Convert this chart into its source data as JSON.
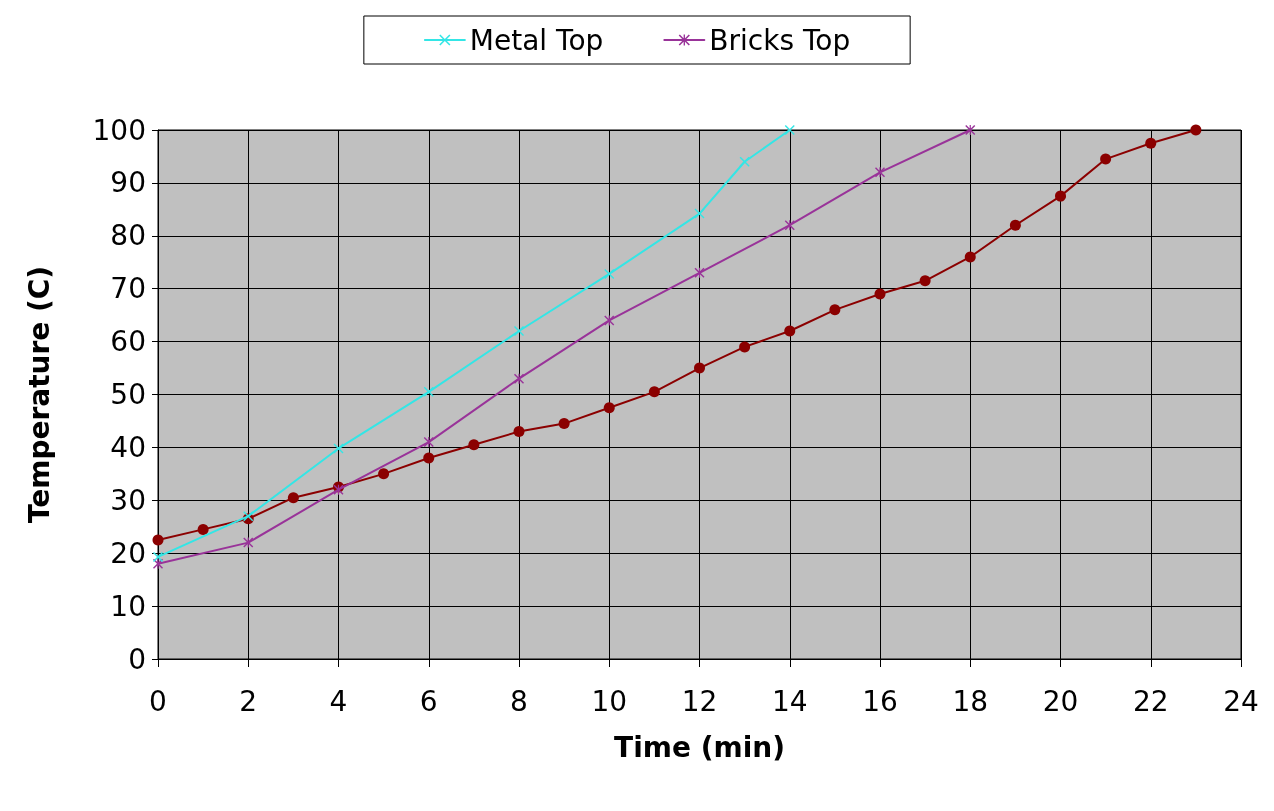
{
  "chart_data": {
    "type": "line",
    "xlabel": "Time (min)",
    "ylabel": "Temperature (C)",
    "xlim": [
      0,
      24
    ],
    "xticks": [
      0,
      2,
      4,
      6,
      8,
      10,
      12,
      14,
      16,
      18,
      20,
      22,
      24
    ],
    "ylim": [
      0,
      100
    ],
    "yticks": [
      0,
      10,
      20,
      30,
      40,
      50,
      60,
      70,
      80,
      90,
      100
    ],
    "grid": true,
    "legend": "top",
    "series": [
      {
        "name": "Metal Top",
        "color": "#33e6e6",
        "marker": "cross",
        "x": [
          0,
          2,
          4,
          6,
          8,
          10,
          12,
          13,
          14
        ],
        "values": [
          19.3,
          27,
          39.8,
          50.5,
          62,
          72.8,
          84.2,
          94,
          100
        ]
      },
      {
        "name": "Bricks Top",
        "color": "#993399",
        "marker": "star",
        "x": [
          0,
          2,
          4,
          6,
          8,
          10,
          12,
          14,
          16,
          18
        ],
        "values": [
          18,
          22,
          32,
          41,
          53,
          64,
          73,
          82,
          92,
          100
        ]
      },
      {
        "color": "#8b0000",
        "marker": "circle",
        "x": [
          0,
          1,
          2,
          3,
          4,
          5,
          6,
          7,
          8,
          9,
          10,
          11,
          12,
          13,
          14,
          15,
          16,
          17,
          18,
          19,
          20,
          21,
          22,
          23
        ],
        "values": [
          22.5,
          24.5,
          26.5,
          30.5,
          32.5,
          35,
          38,
          40.5,
          43,
          44.5,
          47.5,
          50.5,
          55,
          59,
          62,
          66,
          69,
          71.5,
          76,
          82,
          87.5,
          94.5,
          97.5,
          100
        ]
      }
    ]
  }
}
